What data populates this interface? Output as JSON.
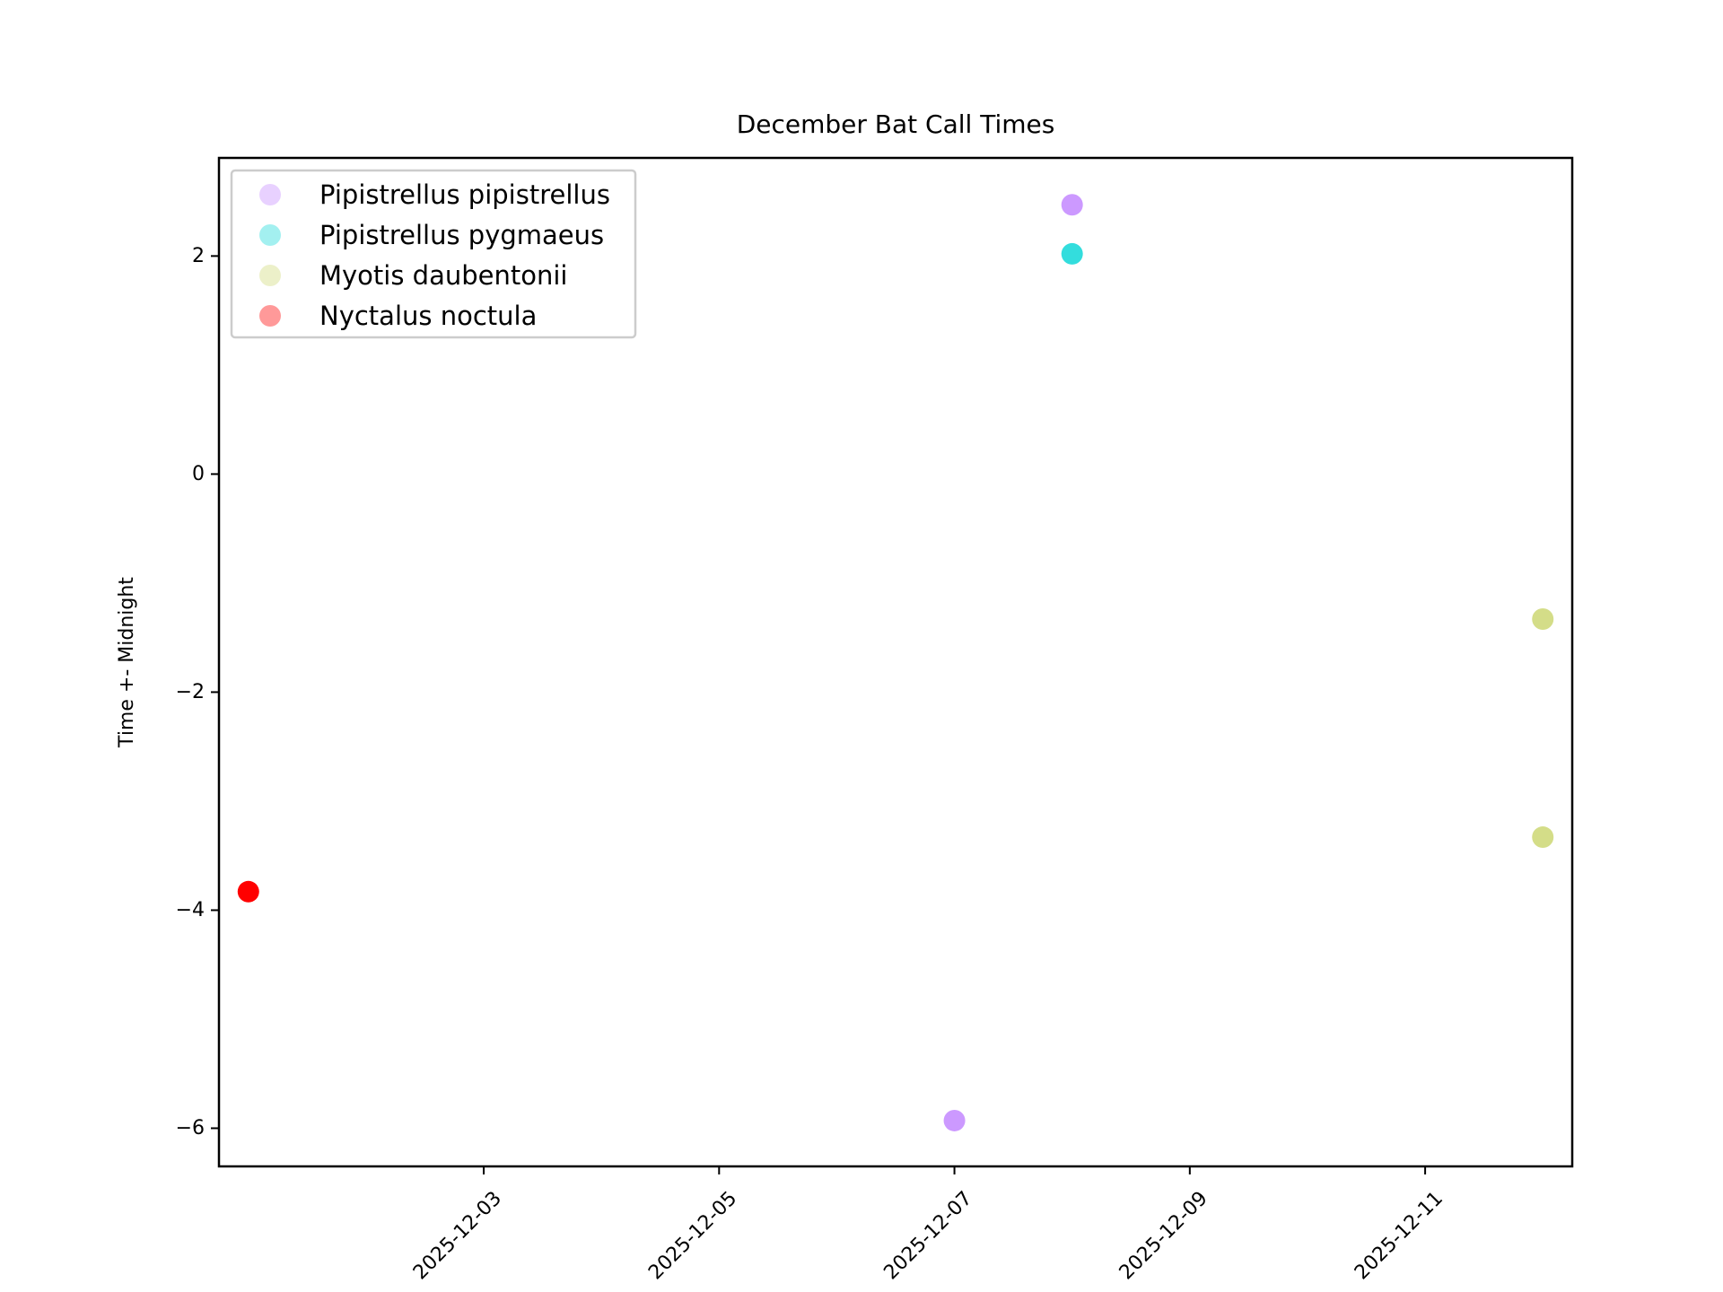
{
  "chart_data": {
    "type": "scatter",
    "title": "December Bat Call Times",
    "xlabel": "",
    "ylabel": "Time +- Midnight",
    "x_axis_type": "date",
    "xlim": [
      "2025-12-01",
      "2025-12-12"
    ],
    "ylim": [
      -6.35,
      2.9
    ],
    "x_ticks": [
      "2025-12-03",
      "2025-12-05",
      "2025-12-07",
      "2025-12-09",
      "2025-12-11"
    ],
    "y_ticks": [
      2,
      0,
      -2,
      -4,
      -6
    ],
    "y_tick_labels": [
      "2",
      "0",
      "−2",
      "−4",
      "−6"
    ],
    "grid": false,
    "legend_position": "top-left",
    "series": [
      {
        "name": "Pipistrellus pipistrellus",
        "color": "#cc99ff",
        "points": [
          {
            "x": "2025-12-07",
            "y": -5.93
          },
          {
            "x": "2025-12-08",
            "y": 2.47
          }
        ]
      },
      {
        "name": "Pipistrellus pygmaeus",
        "color": "#33dddd",
        "points": [
          {
            "x": "2025-12-08",
            "y": 2.02
          }
        ]
      },
      {
        "name": "Myotis daubentonii",
        "color": "#d4dd88",
        "points": [
          {
            "x": "2025-12-12",
            "y": -1.33
          },
          {
            "x": "2025-12-12",
            "y": -3.33
          }
        ]
      },
      {
        "name": "Nyctalus noctula",
        "color": "#ff0000",
        "legend_color": "#ff9999",
        "points": [
          {
            "x": "2025-12-01",
            "y": -3.83
          }
        ]
      }
    ]
  }
}
